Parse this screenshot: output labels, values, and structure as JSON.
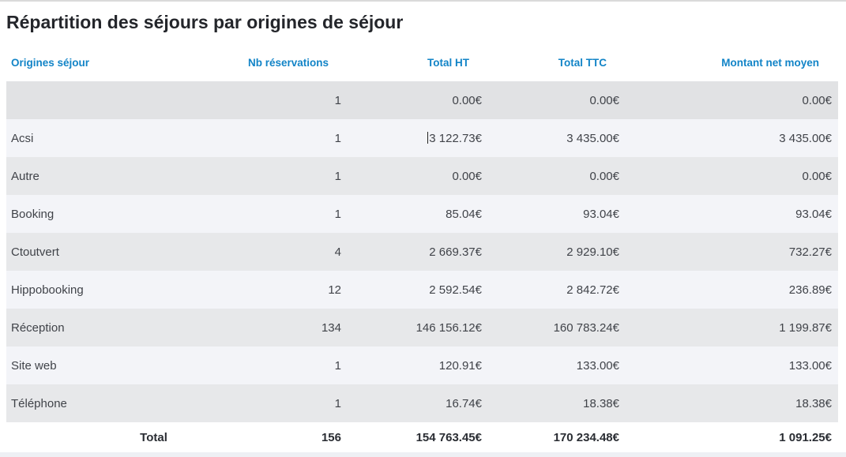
{
  "page": {
    "title": "Répartition des séjours par origines de séjour"
  },
  "colors": {
    "header_text": "#1284c7",
    "row_light": "#f3f4f8",
    "row_gray": "#e7e8ea",
    "row_hover": "#e1e2e4",
    "total_text": "#2a2d33",
    "bottom_strip": "#eef0f4"
  },
  "table": {
    "columns": [
      {
        "label": "Origines séjour"
      },
      {
        "label": "Nb réservations"
      },
      {
        "label": "Total HT"
      },
      {
        "label": "Total TTC"
      },
      {
        "label": "Montant net moyen"
      }
    ],
    "rows": [
      {
        "origin": "",
        "reservations": "1",
        "total_ht": "0.00€",
        "total_ttc": "0.00€",
        "net_avg": "0.00€",
        "state": "hover"
      },
      {
        "origin": "Acsi",
        "reservations": "1",
        "total_ht": "3 122.73€",
        "total_ttc": "3 435.00€",
        "net_avg": "3 435.00€",
        "caret": true
      },
      {
        "origin": "Autre",
        "reservations": "1",
        "total_ht": "0.00€",
        "total_ttc": "0.00€",
        "net_avg": "0.00€"
      },
      {
        "origin": "Booking",
        "reservations": "1",
        "total_ht": "85.04€",
        "total_ttc": "93.04€",
        "net_avg": "93.04€"
      },
      {
        "origin": "Ctoutvert",
        "reservations": "4",
        "total_ht": "2 669.37€",
        "total_ttc": "2 929.10€",
        "net_avg": "732.27€"
      },
      {
        "origin": "Hippobooking",
        "reservations": "12",
        "total_ht": "2 592.54€",
        "total_ttc": "2 842.72€",
        "net_avg": "236.89€"
      },
      {
        "origin": "Réception",
        "reservations": "134",
        "total_ht": "146 156.12€",
        "total_ttc": "160 783.24€",
        "net_avg": "1 199.87€"
      },
      {
        "origin": "Site web",
        "reservations": "1",
        "total_ht": "120.91€",
        "total_ttc": "133.00€",
        "net_avg": "133.00€"
      },
      {
        "origin": "Téléphone",
        "reservations": "1",
        "total_ht": "16.74€",
        "total_ttc": "18.38€",
        "net_avg": "18.38€"
      }
    ],
    "footer": {
      "label": "Total",
      "reservations": "156",
      "total_ht": "154 763.45€",
      "total_ttc": "170 234.48€",
      "net_avg": "1 091.25€"
    }
  }
}
